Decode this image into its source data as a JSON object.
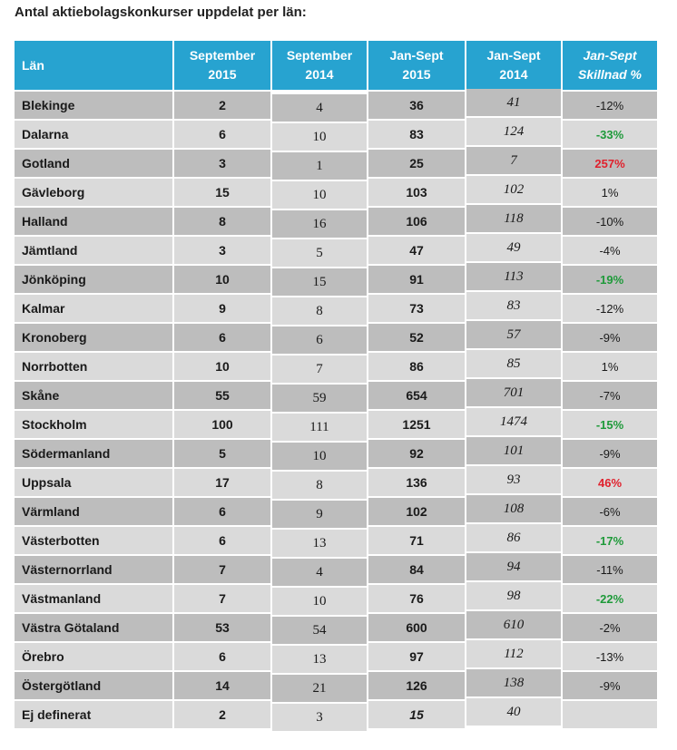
{
  "title": "Antal aktiebolagskonkurser uppdelat per län:",
  "colors": {
    "header_bg": "#27a3d0",
    "row_dark": "#bdbdbd",
    "row_light": "#dadada",
    "decrease_highlight": "#1f9a3a",
    "increase_highlight": "#e0212d"
  },
  "headers": [
    [
      "Län"
    ],
    [
      "September",
      "2015"
    ],
    [
      "September",
      "2014"
    ],
    [
      "Jan-Sept",
      "2015"
    ],
    [
      "Jan-Sept",
      "2014"
    ],
    [
      "Jan-Sept",
      "Skillnad %"
    ]
  ],
  "rows": [
    {
      "lan": "Blekinge",
      "sep2015": "2",
      "sep2014": "4",
      "jan2015": "36",
      "jan2014": "41",
      "diff": "-12%",
      "highlight": ""
    },
    {
      "lan": "Dalarna",
      "sep2015": "6",
      "sep2014": "10",
      "jan2015": "83",
      "jan2014": "124",
      "diff": "-33%",
      "highlight": "green"
    },
    {
      "lan": "Gotland",
      "sep2015": "3",
      "sep2014": "1",
      "jan2015": "25",
      "jan2014": "7",
      "diff": "257%",
      "highlight": "red"
    },
    {
      "lan": "Gävleborg",
      "sep2015": "15",
      "sep2014": "10",
      "jan2015": "103",
      "jan2014": "102",
      "diff": "1%",
      "highlight": ""
    },
    {
      "lan": "Halland",
      "sep2015": "8",
      "sep2014": "16",
      "jan2015": "106",
      "jan2014": "118",
      "diff": "-10%",
      "highlight": ""
    },
    {
      "lan": "Jämtland",
      "sep2015": "3",
      "sep2014": "5",
      "jan2015": "47",
      "jan2014": "49",
      "diff": "-4%",
      "highlight": ""
    },
    {
      "lan": "Jönköping",
      "sep2015": "10",
      "sep2014": "15",
      "jan2015": "91",
      "jan2014": "113",
      "diff": "-19%",
      "highlight": "green"
    },
    {
      "lan": "Kalmar",
      "sep2015": "9",
      "sep2014": "8",
      "jan2015": "73",
      "jan2014": "83",
      "diff": "-12%",
      "highlight": ""
    },
    {
      "lan": "Kronoberg",
      "sep2015": "6",
      "sep2014": "6",
      "jan2015": "52",
      "jan2014": "57",
      "diff": "-9%",
      "highlight": ""
    },
    {
      "lan": "Norrbotten",
      "sep2015": "10",
      "sep2014": "7",
      "jan2015": "86",
      "jan2014": "85",
      "diff": "1%",
      "highlight": ""
    },
    {
      "lan": "Skåne",
      "sep2015": "55",
      "sep2014": "59",
      "jan2015": "654",
      "jan2014": "701",
      "diff": "-7%",
      "highlight": ""
    },
    {
      "lan": "Stockholm",
      "sep2015": "100",
      "sep2014": "111",
      "jan2015": "1251",
      "jan2014": "1474",
      "diff": "-15%",
      "highlight": "green"
    },
    {
      "lan": "Södermanland",
      "sep2015": "5",
      "sep2014": "10",
      "jan2015": "92",
      "jan2014": "101",
      "diff": "-9%",
      "highlight": ""
    },
    {
      "lan": "Uppsala",
      "sep2015": "17",
      "sep2014": "8",
      "jan2015": "136",
      "jan2014": "93",
      "diff": "46%",
      "highlight": "red"
    },
    {
      "lan": "Värmland",
      "sep2015": "6",
      "sep2014": "9",
      "jan2015": "102",
      "jan2014": "108",
      "diff": "-6%",
      "highlight": ""
    },
    {
      "lan": "Västerbotten",
      "sep2015": "6",
      "sep2014": "13",
      "jan2015": "71",
      "jan2014": "86",
      "diff": "-17%",
      "highlight": "green"
    },
    {
      "lan": "Västernorrland",
      "sep2015": "7",
      "sep2014": "4",
      "jan2015": "84",
      "jan2014": "94",
      "diff": "-11%",
      "highlight": ""
    },
    {
      "lan": "Västmanland",
      "sep2015": "7",
      "sep2014": "10",
      "jan2015": "76",
      "jan2014": "98",
      "diff": "-22%",
      "highlight": "green"
    },
    {
      "lan": "Västra Götaland",
      "sep2015": "53",
      "sep2014": "54",
      "jan2015": "600",
      "jan2014": "610",
      "diff": "-2%",
      "highlight": ""
    },
    {
      "lan": "Örebro",
      "sep2015": "6",
      "sep2014": "13",
      "jan2015": "97",
      "jan2014": "112",
      "diff": "-13%",
      "highlight": ""
    },
    {
      "lan": "Östergötland",
      "sep2015": "14",
      "sep2014": "21",
      "jan2015": "126",
      "jan2014": "138",
      "diff": "-9%",
      "highlight": ""
    },
    {
      "lan": "Ej definerat",
      "sep2015": "2",
      "sep2014": "3",
      "jan2015": "15",
      "jan2014": "40",
      "diff": "",
      "highlight": "",
      "jan2015_italic": true
    }
  ]
}
